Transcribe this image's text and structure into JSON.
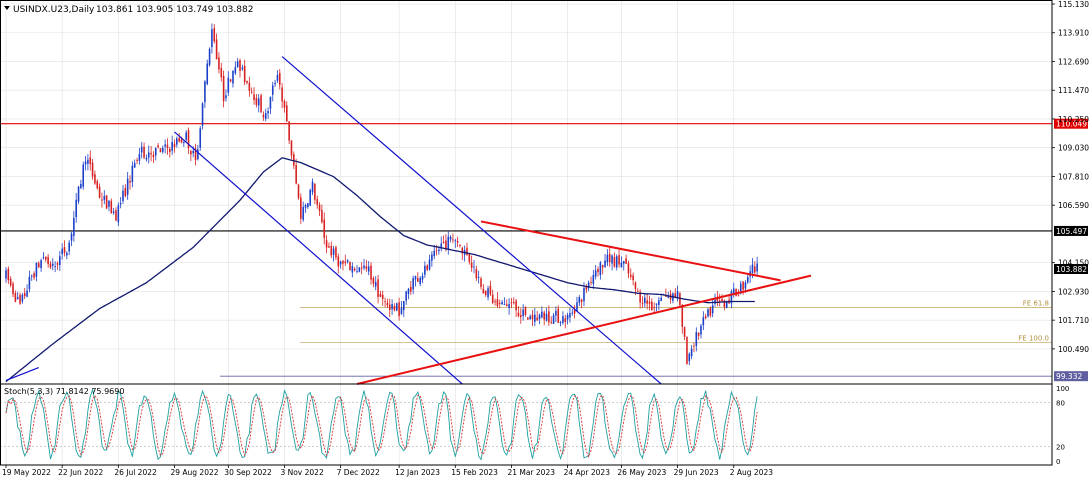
{
  "header": {
    "symbol_label": "USINDX.U23,Daily",
    "ohlc_label": "103.861 103.905 103.749 103.882"
  },
  "stoch_label": "Stoch(5,3,3) 71.8142 75.9690",
  "chart_data": [
    {
      "type": "candlestick",
      "title": "USINDX.U23,Daily",
      "ylim": [
        99.0,
        115.3
      ],
      "y_ticks": [
        "115.130",
        "113.910",
        "112.690",
        "111.470",
        "110.250",
        "109.030",
        "107.810",
        "106.590",
        "104.150",
        "102.930",
        "101.710",
        "100.490"
      ],
      "x_ticks": [
        {
          "label": "19 May 2022",
          "i": 0
        },
        {
          "label": "22 Jun 2022",
          "i": 24
        },
        {
          "label": "26 Jul 2022",
          "i": 48
        },
        {
          "label": "29 Aug 2022",
          "i": 72
        },
        {
          "label": "30 Sep 2022",
          "i": 95
        },
        {
          "label": "3 Nov 2022",
          "i": 119
        },
        {
          "label": "7 Dec 2022",
          "i": 143
        },
        {
          "label": "12 Jan 2023",
          "i": 168
        },
        {
          "label": "15 Feb 2023",
          "i": 192
        },
        {
          "label": "21 Mar 2023",
          "i": 216
        },
        {
          "label": "24 Apr 2023",
          "i": 240
        },
        {
          "label": "26 May 2023",
          "i": 263
        },
        {
          "label": "29 Jun 2023",
          "i": 287
        },
        {
          "label": "2 Aug 2023",
          "i": 311
        }
      ],
      "price_waypoints": [
        [
          0,
          103.6
        ],
        [
          6,
          102.3
        ],
        [
          11,
          103.6
        ],
        [
          16,
          104.4
        ],
        [
          20,
          103.9
        ],
        [
          27,
          105.0
        ],
        [
          34,
          108.7
        ],
        [
          40,
          107.0
        ],
        [
          47,
          106.2
        ],
        [
          57,
          108.8
        ],
        [
          67,
          108.9
        ],
        [
          77,
          109.5
        ],
        [
          81,
          108.4
        ],
        [
          88,
          114.2
        ],
        [
          93,
          111.2
        ],
        [
          98,
          112.7
        ],
        [
          106,
          111.3
        ],
        [
          111,
          110.3
        ],
        [
          116,
          112.3
        ],
        [
          121,
          109.4
        ],
        [
          126,
          106.2
        ],
        [
          131,
          107.4
        ],
        [
          137,
          104.9
        ],
        [
          143,
          104.1
        ],
        [
          150,
          103.9
        ],
        [
          155,
          103.8
        ],
        [
          161,
          102.5
        ],
        [
          168,
          102.1
        ],
        [
          174,
          103.4
        ],
        [
          180,
          103.9
        ],
        [
          186,
          104.9
        ],
        [
          192,
          105.2
        ],
        [
          198,
          104.3
        ],
        [
          204,
          103.1
        ],
        [
          210,
          102.3
        ],
        [
          216,
          102.4
        ],
        [
          222,
          101.8
        ],
        [
          230,
          101.9
        ],
        [
          240,
          101.8
        ],
        [
          246,
          102.7
        ],
        [
          252,
          103.9
        ],
        [
          258,
          104.3
        ],
        [
          264,
          104.1
        ],
        [
          270,
          102.8
        ],
        [
          276,
          102.3
        ],
        [
          282,
          102.8
        ],
        [
          287,
          102.8
        ],
        [
          291,
          100.1
        ],
        [
          297,
          101.4
        ],
        [
          303,
          102.4
        ],
        [
          309,
          102.6
        ],
        [
          315,
          103.2
        ],
        [
          318,
          103.9
        ],
        [
          321,
          103.88
        ]
      ],
      "ma_waypoints": [
        [
          0,
          99.1
        ],
        [
          20,
          100.7
        ],
        [
          40,
          102.2
        ],
        [
          60,
          103.3
        ],
        [
          80,
          104.8
        ],
        [
          100,
          106.8
        ],
        [
          110,
          108.0
        ],
        [
          118,
          108.6
        ],
        [
          126,
          108.4
        ],
        [
          140,
          107.8
        ],
        [
          150,
          107.0
        ],
        [
          160,
          106.1
        ],
        [
          170,
          105.3
        ],
        [
          180,
          104.9
        ],
        [
          190,
          104.7
        ],
        [
          200,
          104.5
        ],
        [
          210,
          104.2
        ],
        [
          220,
          103.9
        ],
        [
          230,
          103.6
        ],
        [
          240,
          103.3
        ],
        [
          250,
          103.1
        ],
        [
          260,
          103.0
        ],
        [
          270,
          102.85
        ],
        [
          280,
          102.8
        ],
        [
          290,
          102.6
        ],
        [
          300,
          102.45
        ],
        [
          310,
          102.5
        ],
        [
          320,
          102.5
        ]
      ],
      "horizontal_levels": [
        {
          "label": "110.049",
          "value": 110.049,
          "color": "#e00000"
        },
        {
          "label": "105.497",
          "value": 105.497,
          "color": "#000000"
        },
        {
          "label": "FE 61.8",
          "value": 102.25,
          "color": "#c8b070"
        },
        {
          "label": "FE 100.0",
          "value": 100.76,
          "color": "#c8b070"
        },
        {
          "label": "99.332",
          "value": 99.332,
          "color": "#6060a0"
        }
      ],
      "current_price": {
        "label": "103.882",
        "value": 103.882
      },
      "trendlines": [
        {
          "name": "blue-channel-upper",
          "color": "#1010d0",
          "points": [
            [
              118,
              112.9
            ],
            [
              280,
              99.0
            ]
          ]
        },
        {
          "name": "blue-channel-lower",
          "color": "#1010d0",
          "points": [
            [
              72,
              109.7
            ],
            [
              195,
              99.0
            ]
          ]
        },
        {
          "name": "red-triangle-upper",
          "color": "#e81010",
          "points": [
            [
              203,
              105.9
            ],
            [
              331,
              103.4
            ]
          ]
        },
        {
          "name": "red-triangle-lower",
          "color": "#e81010",
          "points": [
            [
              150,
              99.0
            ],
            [
              344,
              103.6
            ]
          ]
        },
        {
          "name": "blue-segment-left",
          "color": "#1010d0",
          "points": [
            [
              0,
              99.15
            ],
            [
              14,
              99.7
            ]
          ]
        }
      ]
    },
    {
      "type": "line",
      "title": "Stoch(5,3,3) 71.8142 75.9690",
      "ylim": [
        0,
        100
      ],
      "y_ticks": [
        "100",
        "80",
        "20",
        "0"
      ],
      "levels": [
        80,
        20
      ],
      "series": [
        {
          "name": "%K",
          "color": "#20a0a0",
          "values": []
        },
        {
          "name": "%D",
          "color": "#e03030",
          "values": []
        }
      ]
    }
  ],
  "colors": {
    "bull": "#1a3fc8",
    "bear": "#d82020",
    "ma": "#101870",
    "grid": "#e0e0e0",
    "axis": "#000000"
  }
}
